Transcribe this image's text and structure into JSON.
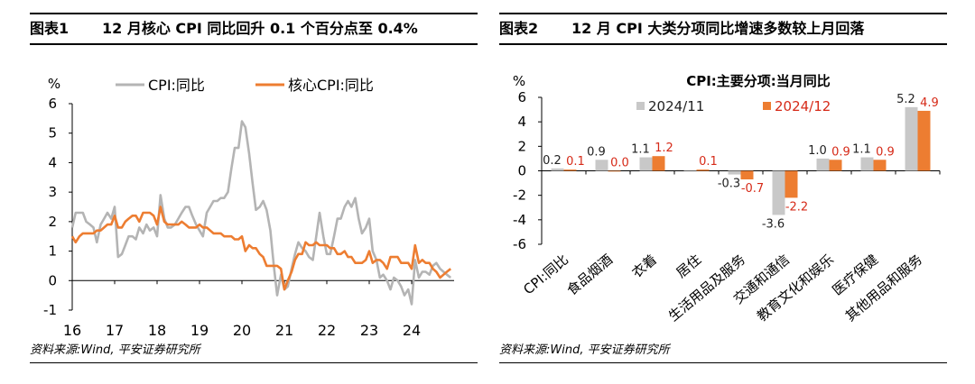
{
  "left": {
    "fig_label": "图表1",
    "title": "12 月核心 CPI 同比回升 0.1 个百分点至 0.4%",
    "source": "资料来源:Wind, 平安证券研究所",
    "chart_data": {
      "type": "line",
      "ylabel": "%",
      "ylim": [
        -1,
        6
      ],
      "yticks": [
        6,
        5,
        4,
        3,
        2,
        1,
        0,
        -1
      ],
      "xlim": [
        2016.0,
        2025.0
      ],
      "xticks": [
        "16",
        "17",
        "18",
        "19",
        "20",
        "21",
        "22",
        "23",
        "24"
      ],
      "grid": false,
      "legend": "top",
      "series": [
        {
          "name": "CPI:同比",
          "color": "#b4b4b4",
          "x": [
            2016.0,
            2016.08,
            2016.17,
            2016.25,
            2016.33,
            2016.42,
            2016.5,
            2016.58,
            2016.67,
            2016.75,
            2016.83,
            2016.92,
            2017.0,
            2017.08,
            2017.17,
            2017.25,
            2017.33,
            2017.42,
            2017.5,
            2017.58,
            2017.67,
            2017.75,
            2017.83,
            2017.92,
            2018.0,
            2018.08,
            2018.17,
            2018.25,
            2018.33,
            2018.42,
            2018.5,
            2018.58,
            2018.67,
            2018.75,
            2018.83,
            2018.92,
            2019.0,
            2019.08,
            2019.17,
            2019.25,
            2019.33,
            2019.42,
            2019.5,
            2019.58,
            2019.67,
            2019.75,
            2019.83,
            2019.92,
            2020.0,
            2020.08,
            2020.17,
            2020.25,
            2020.33,
            2020.42,
            2020.5,
            2020.58,
            2020.67,
            2020.75,
            2020.83,
            2020.92,
            2021.0,
            2021.08,
            2021.17,
            2021.25,
            2021.33,
            2021.42,
            2021.5,
            2021.58,
            2021.67,
            2021.75,
            2021.83,
            2021.92,
            2022.0,
            2022.08,
            2022.17,
            2022.25,
            2022.33,
            2022.42,
            2022.5,
            2022.58,
            2022.67,
            2022.75,
            2022.83,
            2022.92,
            2023.0,
            2023.08,
            2023.17,
            2023.25,
            2023.33,
            2023.42,
            2023.5,
            2023.58,
            2023.67,
            2023.75,
            2023.83,
            2023.92,
            2024.0,
            2024.08,
            2024.17,
            2024.25,
            2024.33,
            2024.42,
            2024.5,
            2024.58,
            2024.67,
            2024.75,
            2024.83,
            2024.92
          ],
          "y": [
            1.8,
            2.3,
            2.3,
            2.3,
            2.0,
            1.9,
            1.8,
            1.3,
            1.9,
            2.1,
            2.3,
            2.1,
            2.5,
            0.8,
            0.9,
            1.2,
            1.5,
            1.5,
            1.4,
            1.8,
            1.6,
            1.9,
            1.7,
            1.8,
            1.5,
            2.9,
            2.1,
            1.8,
            1.8,
            1.9,
            2.1,
            2.3,
            2.5,
            2.5,
            2.2,
            1.9,
            1.7,
            1.5,
            2.3,
            2.5,
            2.7,
            2.7,
            2.8,
            2.8,
            3.0,
            3.8,
            4.5,
            4.5,
            5.4,
            5.2,
            4.3,
            3.3,
            2.4,
            2.5,
            2.7,
            2.4,
            1.7,
            0.5,
            -0.5,
            0.2,
            -0.3,
            -0.2,
            0.4,
            0.9,
            1.3,
            1.1,
            1.0,
            0.8,
            0.7,
            1.5,
            2.3,
            1.5,
            0.9,
            0.9,
            1.5,
            2.1,
            2.1,
            2.5,
            2.7,
            2.5,
            2.8,
            2.1,
            1.6,
            1.8,
            2.1,
            1.0,
            0.7,
            0.1,
            0.2,
            0.0,
            -0.3,
            0.1,
            0.0,
            -0.2,
            -0.5,
            -0.3,
            -0.8,
            0.7,
            0.1,
            0.3,
            0.3,
            0.2,
            0.5,
            0.6,
            0.4,
            0.3,
            0.2,
            0.1
          ]
        },
        {
          "name": "核心CPI:同比",
          "color": "#ed7d31",
          "x": [
            2016.0,
            2016.08,
            2016.17,
            2016.25,
            2016.33,
            2016.42,
            2016.5,
            2016.58,
            2016.67,
            2016.75,
            2016.83,
            2016.92,
            2017.0,
            2017.08,
            2017.17,
            2017.25,
            2017.33,
            2017.42,
            2017.5,
            2017.58,
            2017.67,
            2017.75,
            2017.83,
            2017.92,
            2018.0,
            2018.08,
            2018.17,
            2018.25,
            2018.33,
            2018.42,
            2018.5,
            2018.58,
            2018.67,
            2018.75,
            2018.83,
            2018.92,
            2019.0,
            2019.08,
            2019.17,
            2019.25,
            2019.33,
            2019.42,
            2019.5,
            2019.58,
            2019.67,
            2019.75,
            2019.83,
            2019.92,
            2020.0,
            2020.08,
            2020.17,
            2020.25,
            2020.33,
            2020.42,
            2020.5,
            2020.58,
            2020.67,
            2020.75,
            2020.83,
            2020.92,
            2021.0,
            2021.08,
            2021.17,
            2021.25,
            2021.33,
            2021.42,
            2021.5,
            2021.58,
            2021.67,
            2021.75,
            2021.83,
            2021.92,
            2022.0,
            2022.08,
            2022.17,
            2022.25,
            2022.33,
            2022.42,
            2022.5,
            2022.58,
            2022.67,
            2022.75,
            2022.83,
            2022.92,
            2023.0,
            2023.08,
            2023.17,
            2023.25,
            2023.33,
            2023.42,
            2023.5,
            2023.58,
            2023.67,
            2023.75,
            2023.83,
            2023.92,
            2024.0,
            2024.08,
            2024.17,
            2024.25,
            2024.33,
            2024.42,
            2024.5,
            2024.58,
            2024.67,
            2024.75,
            2024.83,
            2024.92
          ],
          "y": [
            1.5,
            1.3,
            1.5,
            1.6,
            1.6,
            1.6,
            1.6,
            1.7,
            1.7,
            1.8,
            1.9,
            1.9,
            2.2,
            1.8,
            1.8,
            2.0,
            2.1,
            2.2,
            2.2,
            2.0,
            2.3,
            2.3,
            2.3,
            2.2,
            1.9,
            2.5,
            2.0,
            1.9,
            1.9,
            1.9,
            1.9,
            2.0,
            1.9,
            1.8,
            1.8,
            1.8,
            1.9,
            1.8,
            1.8,
            1.7,
            1.6,
            1.6,
            1.6,
            1.5,
            1.5,
            1.5,
            1.4,
            1.4,
            1.5,
            1.0,
            1.2,
            1.1,
            1.1,
            0.9,
            0.8,
            0.5,
            0.5,
            0.5,
            0.5,
            0.4,
            -0.3,
            0.0,
            0.3,
            0.7,
            0.9,
            0.9,
            1.3,
            1.2,
            1.2,
            1.3,
            1.2,
            1.2,
            1.2,
            1.1,
            1.1,
            0.9,
            0.9,
            1.0,
            0.8,
            0.8,
            0.6,
            0.6,
            0.6,
            0.7,
            1.0,
            0.6,
            0.7,
            0.7,
            0.6,
            0.4,
            0.8,
            0.8,
            0.8,
            0.6,
            0.6,
            0.6,
            0.4,
            1.2,
            0.6,
            0.7,
            0.6,
            0.6,
            0.4,
            0.3,
            0.1,
            0.2,
            0.3,
            0.4
          ]
        }
      ]
    }
  },
  "right": {
    "fig_label": "图表2",
    "title": "12 月 CPI 大类分项同比增速多数较上月回落",
    "source": "资料来源:Wind, 平安证券研究所",
    "chart_data": {
      "type": "bar",
      "title": "CPI:主要分项:当月同比",
      "ylabel": "%",
      "ylim": [
        -6,
        6
      ],
      "yticks": [
        6,
        4,
        2,
        0,
        -2,
        -4,
        -6
      ],
      "legend": "top",
      "categories": [
        "CPI:同比",
        "食品烟酒",
        "衣着",
        "居住",
        "生活用品及服务",
        "交通和通信",
        "教育文化和娱乐",
        "医疗保健",
        "其他用品和服务"
      ],
      "series": [
        {
          "name": "2024/11",
          "color": "#c8c8c8",
          "label_color": "#222222",
          "values": [
            0.2,
            0.9,
            1.1,
            0.0,
            -0.3,
            -3.6,
            1.0,
            1.1,
            5.2
          ],
          "labels": [
            "0.2",
            "0.9",
            "1.1",
            "",
            "-0.3",
            "-3.6",
            "1.0",
            "1.1",
            "5.2"
          ]
        },
        {
          "name": "2024/12",
          "color": "#ed7d31",
          "label_color": "#d62a18",
          "values": [
            0.1,
            0.0,
            1.2,
            0.1,
            -0.7,
            -2.2,
            0.9,
            0.9,
            4.9
          ],
          "labels": [
            "0.1",
            "0.0",
            "1.2",
            "0.1",
            "-0.7",
            "-2.2",
            "0.9",
            "0.9",
            "4.9"
          ]
        }
      ]
    }
  }
}
